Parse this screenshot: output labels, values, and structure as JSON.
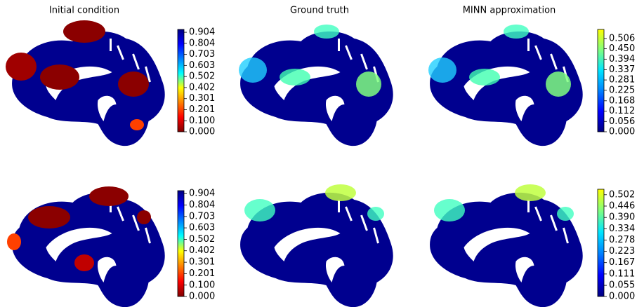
{
  "titles": [
    "Initial condition",
    "Ground truth",
    "MINN approximation"
  ],
  "chart_data": [
    {
      "type": "colorbar",
      "colors": [
        "#7f0000",
        "#ff0000",
        "#ff8000",
        "#ffff00",
        "#00ffff",
        "#0080ff",
        "#0000ff",
        "#00007f"
      ],
      "ylim": [
        0,
        0.93
      ],
      "yticks": [
        {
          "value": 0,
          "label": "0.000"
        },
        {
          "value": 0.1,
          "label": "0.100"
        },
        {
          "value": 0.201,
          "label": "0.201"
        },
        {
          "value": 0.301,
          "label": "0.301"
        },
        {
          "value": 0.402,
          "label": "0.402"
        },
        {
          "value": 0.502,
          "label": "0.502"
        },
        {
          "value": 0.603,
          "label": "0.603"
        },
        {
          "value": 0.703,
          "label": "0.703"
        },
        {
          "value": 0.804,
          "label": "0.804"
        },
        {
          "value": 0.904,
          "label": "0.904"
        }
      ]
    },
    {
      "type": "colorbar",
      "colors": [
        "#00007f",
        "#0000ff",
        "#0080ff",
        "#00e5ff",
        "#7fff7f",
        "#ffff00"
      ],
      "ylim": [
        0,
        0.555
      ],
      "yticks": [
        {
          "value": 0,
          "label": "0.000"
        },
        0.056,
        0.112,
        0.168,
        0.225,
        0.281,
        0.337,
        0.394,
        {
          "value": 0.45,
          "label": "0.450"
        },
        0.506
      ]
    },
    {
      "type": "colorbar",
      "colors": [
        "#7f0000",
        "#ff0000",
        "#ff8000",
        "#ffff00",
        "#00ffff",
        "#0080ff",
        "#0000ff",
        "#00007f"
      ],
      "ylim": [
        0,
        0.93
      ],
      "yticks": [
        {
          "value": 0,
          "label": "0.000"
        },
        {
          "value": 0.1,
          "label": "0.100"
        },
        {
          "value": 0.201,
          "label": "0.201"
        },
        {
          "value": 0.301,
          "label": "0.301"
        },
        {
          "value": 0.402,
          "label": "0.402"
        },
        {
          "value": 0.502,
          "label": "0.502"
        },
        {
          "value": 0.603,
          "label": "0.603"
        },
        {
          "value": 0.703,
          "label": "0.703"
        },
        {
          "value": 0.804,
          "label": "0.804"
        },
        {
          "value": 0.904,
          "label": "0.904"
        }
      ]
    },
    {
      "type": "colorbar",
      "colors": [
        "#00007f",
        "#0000ff",
        "#0080ff",
        "#00e5ff",
        "#7fff7f",
        "#ffff00"
      ],
      "ylim": [
        0,
        0.529
      ],
      "yticks": [
        {
          "value": 0,
          "label": "0.000"
        },
        0.055,
        0.111,
        0.167,
        0.223,
        0.278,
        0.334,
        {
          "value": 0.39,
          "label": "0.390"
        },
        0.446,
        0.502
      ]
    }
  ]
}
